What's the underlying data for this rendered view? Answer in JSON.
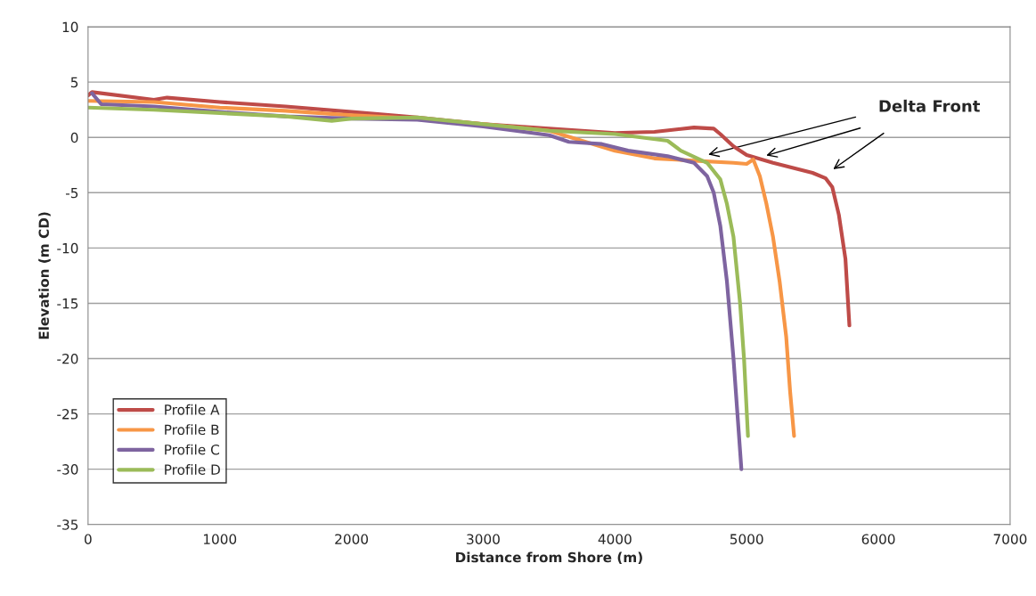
{
  "chart_data": {
    "type": "line",
    "xlabel": "Distance from Shore (m)",
    "ylabel": "Elevation (m CD)",
    "xlim": [
      0,
      7000
    ],
    "xticks": [
      0,
      1000,
      2000,
      3000,
      4000,
      5000,
      6000,
      7000
    ],
    "ylim": [
      -35,
      10
    ],
    "yticks": [
      -35,
      -30,
      -25,
      -20,
      -15,
      -10,
      -5,
      0,
      5,
      10
    ],
    "grid": "y",
    "legend": "bottom left",
    "marker": "none",
    "line_style": "solid",
    "annotations": [
      "Delta Front"
    ],
    "series": [
      {
        "name": "Profile A",
        "color": "#be4b48",
        "x": [
          0,
          30,
          500,
          600,
          1000,
          1500,
          2000,
          2100,
          2500,
          3000,
          3500,
          4000,
          4300,
          4600,
          4750,
          4800,
          4900,
          5000,
          5200,
          5500,
          5600,
          5650,
          5700,
          5750,
          5780
        ],
        "values": [
          3.8,
          4.1,
          3.4,
          3.6,
          3.2,
          2.8,
          2.3,
          2.2,
          1.8,
          1.2,
          0.8,
          0.4,
          0.5,
          0.9,
          0.8,
          0.3,
          -0.8,
          -1.6,
          -2.3,
          -3.2,
          -3.7,
          -4.5,
          -7,
          -11,
          -17
        ]
      },
      {
        "name": "Profile B",
        "color": "#f79646",
        "x": [
          0,
          500,
          1000,
          1500,
          2000,
          2500,
          3000,
          3500,
          4000,
          4300,
          4600,
          4900,
          5000,
          5050,
          5100,
          5150,
          5200,
          5250,
          5300,
          5330,
          5360
        ],
        "values": [
          3.3,
          3.2,
          2.7,
          2.4,
          2.0,
          1.7,
          1.2,
          0.6,
          -1.2,
          -1.9,
          -2.1,
          -2.3,
          -2.4,
          -2.0,
          -3.5,
          -6,
          -9,
          -13,
          -18,
          -23,
          -27
        ]
      },
      {
        "name": "Profile C",
        "color": "#7e64a0",
        "x": [
          30,
          100,
          500,
          1000,
          1500,
          2000,
          2500,
          3000,
          3500,
          3650,
          3900,
          4100,
          4400,
          4600,
          4700,
          4750,
          4800,
          4850,
          4900,
          4930,
          4960
        ],
        "values": [
          4.0,
          3.0,
          2.8,
          2.3,
          1.9,
          1.7,
          1.6,
          1.0,
          0.2,
          -0.4,
          -0.6,
          -1.2,
          -1.7,
          -2.3,
          -3.5,
          -5,
          -8,
          -13,
          -20,
          -25,
          -30
        ]
      },
      {
        "name": "Profile D",
        "color": "#9bbb59",
        "x": [
          0,
          500,
          1000,
          1500,
          1850,
          2000,
          2500,
          3000,
          3500,
          4000,
          4400,
          4500,
          4700,
          4800,
          4850,
          4900,
          4950,
          4980,
          5010
        ],
        "values": [
          2.7,
          2.5,
          2.2,
          1.9,
          1.5,
          1.7,
          1.8,
          1.2,
          0.6,
          0.3,
          -0.3,
          -1.2,
          -2.3,
          -3.8,
          -6,
          -9,
          -15,
          -20,
          -27
        ]
      }
    ]
  }
}
